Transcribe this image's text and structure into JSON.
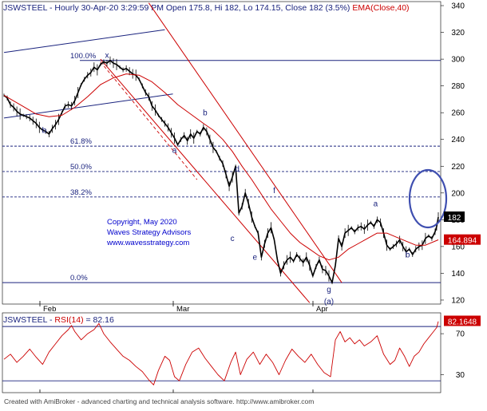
{
  "header": {
    "symbol": "JSWSTEEL",
    "info": " - Hourly 30-Apr-20 3:29:59 PM Open 175.8, Hi 182, Lo 174.15, Close 182 (3.5%) ",
    "ema_label": "EMA(Close,40)"
  },
  "rsi_header": {
    "symbol": "JSWSTEEL",
    "sep": " - ",
    "rsi_label": "RSI(14)",
    "value_text": " = 82.16"
  },
  "footer": "Created with AmiBroker - advanced charting and technical analysis software. http://www.amibroker.com",
  "copyright_lines": [
    "Copyright, May 2020",
    "Waves Strategy Advisors",
    "www.wavesstrategy.com"
  ],
  "fib_labels": [
    "100.0%",
    "61.8%",
    "50.0%",
    "38.2%",
    "0.0%"
  ],
  "wave_labels": [
    "x",
    "b",
    "b",
    "a",
    "d",
    "f",
    "c",
    "e",
    "g",
    "(a)",
    "a",
    "b"
  ],
  "price_tags": {
    "close": "182",
    "ema": "164.894",
    "rsi": "82.1648"
  },
  "colors": {
    "price": "#000000",
    "ema": "#cc0000",
    "rsi": "#cc0000",
    "fib": "#1a237e",
    "channel": "#cc0000",
    "wave_label": "#1a237e",
    "text_blue": "#0000cc",
    "circle": "#3f4fb0"
  },
  "chart_data": [
    {
      "type": "line",
      "title": "JSWSTEEL - Hourly 30-Apr-20 3:29:59 PM Open 175.8, Hi 182, Lo 174.15, Close 182 (3.5%)",
      "y_ticks": [
        120,
        140,
        160,
        180,
        200,
        220,
        240,
        260,
        280,
        300,
        320,
        340
      ],
      "ylim": [
        117,
        343
      ],
      "x_ticks": [
        "Feb",
        "Mar",
        "Apr"
      ],
      "fib_levels": [
        {
          "label": "100.0%",
          "value": 299
        },
        {
          "label": "61.8%",
          "value": 235
        },
        {
          "label": "50.0%",
          "value": 216
        },
        {
          "label": "38.2%",
          "value": 197
        },
        {
          "label": "0.0%",
          "value": 133
        }
      ],
      "series": [
        {
          "name": "JSWSTEEL",
          "values": [
            [
              0,
              273
            ],
            [
              4,
              271
            ],
            [
              8,
              266
            ],
            [
              12,
              264
            ],
            [
              16,
              261
            ],
            [
              20,
              259
            ],
            [
              24,
              258
            ],
            [
              28,
              257
            ],
            [
              32,
              256
            ],
            [
              36,
              254
            ],
            [
              40,
              252
            ],
            [
              44,
              249
            ],
            [
              48,
              247
            ],
            [
              52,
              246
            ],
            [
              56,
              244
            ],
            [
              60,
              248
            ],
            [
              64,
              251
            ],
            [
              68,
              255
            ],
            [
              72,
              260
            ],
            [
              76,
              265
            ],
            [
              80,
              266
            ],
            [
              84,
              265
            ],
            [
              88,
              269
            ],
            [
              92,
              275
            ],
            [
              96,
              281
            ],
            [
              100,
              285
            ],
            [
              104,
              288
            ],
            [
              108,
              290
            ],
            [
              112,
              294
            ],
            [
              116,
              292
            ],
            [
              120,
              296
            ],
            [
              124,
              298
            ],
            [
              128,
              297
            ],
            [
              132,
              299
            ],
            [
              136,
              297
            ],
            [
              140,
              296
            ],
            [
              144,
              294
            ],
            [
              148,
              292
            ],
            [
              152,
              293
            ],
            [
              156,
              291
            ],
            [
              160,
              289
            ],
            [
              164,
              288
            ],
            [
              168,
              285
            ],
            [
              172,
              280
            ],
            [
              176,
              275
            ],
            [
              180,
              272
            ],
            [
              184,
              265
            ],
            [
              188,
              262
            ],
            [
              192,
              258
            ],
            [
              196,
              255
            ],
            [
              200,
              252
            ],
            [
              204,
              249
            ],
            [
              208,
              245
            ],
            [
              212,
              241
            ],
            [
              216,
              236
            ],
            [
              220,
              240
            ],
            [
              224,
              243
            ],
            [
              228,
              239
            ],
            [
              232,
              244
            ],
            [
              236,
              241
            ],
            [
              240,
              246
            ],
            [
              244,
              244
            ],
            [
              248,
              249
            ],
            [
              252,
              246
            ],
            [
              256,
              240
            ],
            [
              260,
              234
            ],
            [
              264,
              231
            ],
            [
              268,
              226
            ],
            [
              272,
              222
            ],
            [
              276,
              214
            ],
            [
              280,
              205
            ],
            [
              284,
              212
            ],
            [
              288,
              220
            ],
            [
              292,
              185
            ],
            [
              296,
              190
            ],
            [
              300,
              200
            ],
            [
              304,
              192
            ],
            [
              308,
              182
            ],
            [
              312,
              175
            ],
            [
              316,
              170
            ],
            [
              320,
              152
            ],
            [
              324,
              162
            ],
            [
              328,
              170
            ],
            [
              332,
              174
            ],
            [
              336,
              165
            ],
            [
              340,
              150
            ],
            [
              344,
              140
            ],
            [
              348,
              146
            ],
            [
              352,
              150
            ],
            [
              356,
              152
            ],
            [
              360,
              149
            ],
            [
              364,
              154
            ],
            [
              368,
              151
            ],
            [
              372,
              148
            ],
            [
              376,
              152
            ],
            [
              380,
              146
            ],
            [
              384,
              138
            ],
            [
              388,
              145
            ],
            [
              392,
              150
            ],
            [
              396,
              143
            ],
            [
              400,
              142
            ],
            [
              404,
              138
            ],
            [
              408,
              133
            ],
            [
              412,
              146
            ],
            [
              416,
              166
            ],
            [
              420,
              160
            ],
            [
              424,
              170
            ],
            [
              428,
              172
            ],
            [
              432,
              174
            ],
            [
              436,
              171
            ],
            [
              440,
              174
            ],
            [
              444,
              175
            ],
            [
              448,
              173
            ],
            [
              452,
              176
            ],
            [
              456,
              178
            ],
            [
              460,
              175
            ],
            [
              464,
              180
            ],
            [
              468,
              178
            ],
            [
              472,
              170
            ],
            [
              476,
              161
            ],
            [
              480,
              158
            ],
            [
              484,
              160
            ],
            [
              488,
              162
            ],
            [
              492,
              165
            ],
            [
              496,
              160
            ],
            [
              500,
              156
            ],
            [
              504,
              158
            ],
            [
              508,
              154
            ],
            [
              512,
              158
            ],
            [
              516,
              160
            ],
            [
              520,
              161
            ],
            [
              524,
              166
            ],
            [
              528,
              168
            ],
            [
              532,
              166
            ],
            [
              536,
              171
            ],
            [
              538,
              175
            ],
            [
              540,
              182
            ]
          ]
        },
        {
          "name": "EMA(Close,40)",
          "values": [
            [
              0,
              273
            ],
            [
              20,
              266
            ],
            [
              40,
              259
            ],
            [
              56,
              257
            ],
            [
              72,
              258
            ],
            [
              88,
              264
            ],
            [
              104,
              272
            ],
            [
              120,
              281
            ],
            [
              136,
              286
            ],
            [
              152,
              289
            ],
            [
              168,
              288
            ],
            [
              184,
              283
            ],
            [
              200,
              275
            ],
            [
              216,
              266
            ],
            [
              232,
              259
            ],
            [
              248,
              252
            ],
            [
              260,
              247
            ],
            [
              272,
              240
            ],
            [
              284,
              231
            ],
            [
              296,
              220
            ],
            [
              308,
              210
            ],
            [
              320,
              199
            ],
            [
              332,
              188
            ],
            [
              344,
              179
            ],
            [
              356,
              170
            ],
            [
              368,
              163
            ],
            [
              380,
              158
            ],
            [
              392,
              153
            ],
            [
              404,
              150
            ],
            [
              416,
              152
            ],
            [
              428,
              158
            ],
            [
              440,
              162
            ],
            [
              452,
              166
            ],
            [
              464,
              170
            ],
            [
              476,
              170
            ],
            [
              488,
              167
            ],
            [
              500,
              164
            ],
            [
              512,
              161
            ],
            [
              524,
              161
            ],
            [
              540,
              165
            ]
          ]
        }
      ]
    },
    {
      "type": "line",
      "title": "JSWSTEEL - RSI(14) = 82.16",
      "y_ticks": [
        30,
        70
      ],
      "ylim": [
        14,
        88
      ],
      "ref_lines": [
        77,
        24
      ],
      "series": [
        {
          "name": "RSI(14)",
          "values": [
            [
              0,
              45
            ],
            [
              8,
              50
            ],
            [
              16,
              42
            ],
            [
              24,
              48
            ],
            [
              32,
              55
            ],
            [
              40,
              47
            ],
            [
              48,
              40
            ],
            [
              56,
              52
            ],
            [
              64,
              60
            ],
            [
              72,
              68
            ],
            [
              80,
              74
            ],
            [
              84,
              78
            ],
            [
              88,
              72
            ],
            [
              96,
              64
            ],
            [
              104,
              70
            ],
            [
              112,
              74
            ],
            [
              118,
              80
            ],
            [
              124,
              70
            ],
            [
              132,
              62
            ],
            [
              140,
              55
            ],
            [
              148,
              48
            ],
            [
              156,
              44
            ],
            [
              164,
              38
            ],
            [
              172,
              33
            ],
            [
              180,
              25
            ],
            [
              186,
              20
            ],
            [
              192,
              34
            ],
            [
              200,
              48
            ],
            [
              206,
              44
            ],
            [
              212,
              28
            ],
            [
              218,
              24
            ],
            [
              226,
              40
            ],
            [
              234,
              52
            ],
            [
              242,
              56
            ],
            [
              250,
              46
            ],
            [
              258,
              38
            ],
            [
              266,
              30
            ],
            [
              274,
              24
            ],
            [
              282,
              42
            ],
            [
              288,
              52
            ],
            [
              294,
              30
            ],
            [
              302,
              45
            ],
            [
              310,
              52
            ],
            [
              318,
              40
            ],
            [
              326,
              50
            ],
            [
              334,
              42
            ],
            [
              342,
              30
            ],
            [
              350,
              44
            ],
            [
              358,
              55
            ],
            [
              366,
              48
            ],
            [
              374,
              42
            ],
            [
              382,
              50
            ],
            [
              390,
              40
            ],
            [
              398,
              32
            ],
            [
              406,
              28
            ],
            [
              412,
              64
            ],
            [
              418,
              72
            ],
            [
              424,
              62
            ],
            [
              430,
              66
            ],
            [
              436,
              60
            ],
            [
              442,
              64
            ],
            [
              448,
              58
            ],
            [
              456,
              62
            ],
            [
              464,
              68
            ],
            [
              472,
              50
            ],
            [
              480,
              40
            ],
            [
              486,
              44
            ],
            [
              492,
              56
            ],
            [
              498,
              48
            ],
            [
              504,
              38
            ],
            [
              510,
              48
            ],
            [
              516,
              52
            ],
            [
              522,
              60
            ],
            [
              528,
              66
            ],
            [
              534,
              72
            ],
            [
              538,
              76
            ],
            [
              540,
              82
            ]
          ]
        }
      ]
    }
  ]
}
